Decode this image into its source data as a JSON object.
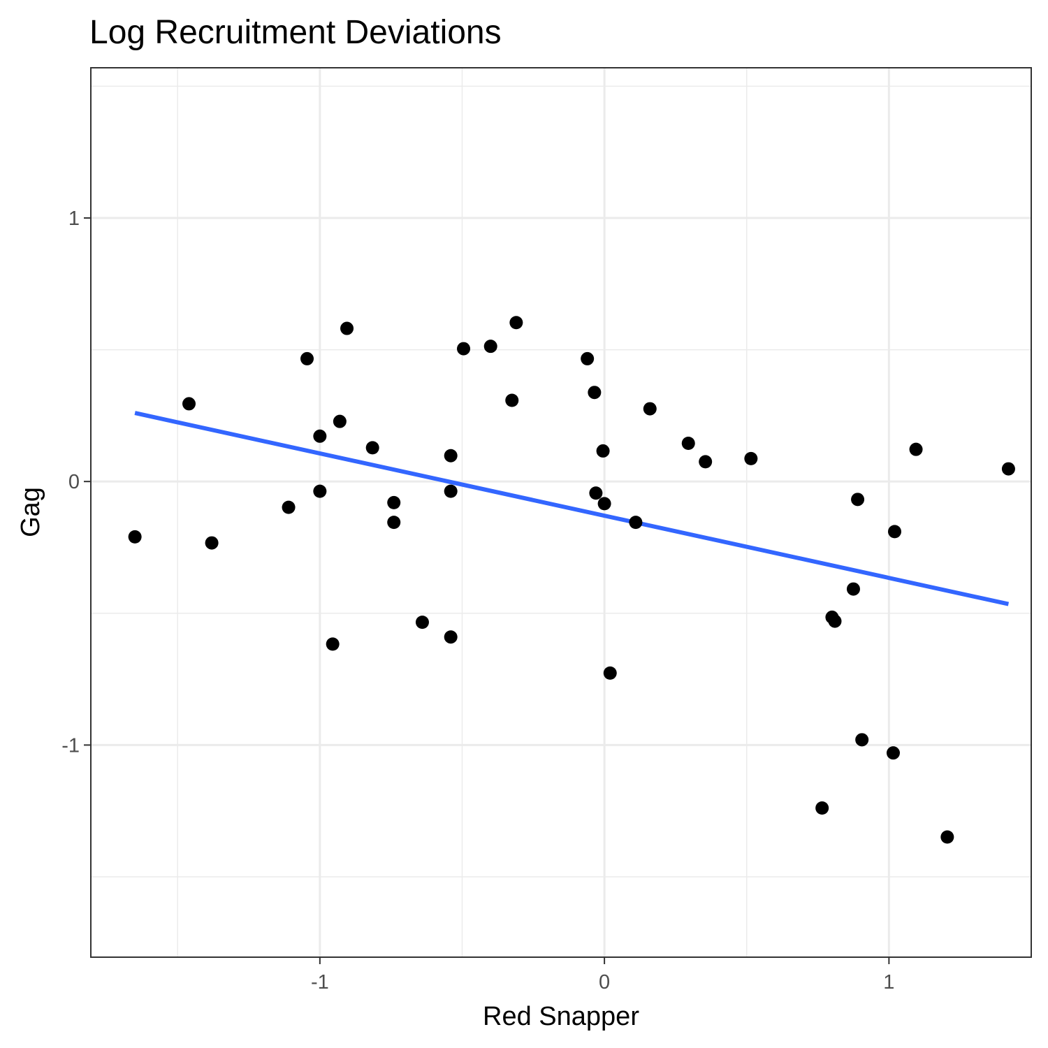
{
  "chart_data": {
    "type": "scatter",
    "title": "Log Recruitment Deviations",
    "xlabel": "Red Snapper",
    "ylabel": "Gag",
    "xlim": [
      -1.805,
      1.5
    ],
    "ylim": [
      -1.805,
      1.57
    ],
    "x_ticks": [
      -1,
      0,
      1
    ],
    "x_tick_labels": [
      "-1",
      "0",
      "1"
    ],
    "y_ticks": [
      -1,
      0,
      1
    ],
    "y_tick_labels": [
      "-1",
      "0",
      "1"
    ],
    "x_minor_ticks": [
      -1.5,
      -0.5,
      0.5,
      1.5
    ],
    "y_minor_ticks": [
      -1.5,
      -0.5,
      0.5,
      1.5
    ],
    "grid": true,
    "points": [
      {
        "x": -1.65,
        "y": -0.21
      },
      {
        "x": -1.46,
        "y": 0.295
      },
      {
        "x": -1.38,
        "y": -0.233
      },
      {
        "x": -1.11,
        "y": -0.098
      },
      {
        "x": -1.045,
        "y": 0.466
      },
      {
        "x": -1.0,
        "y": 0.172
      },
      {
        "x": -1.0,
        "y": -0.037
      },
      {
        "x": -0.955,
        "y": -0.617
      },
      {
        "x": -0.93,
        "y": 0.228
      },
      {
        "x": -0.905,
        "y": 0.581
      },
      {
        "x": -0.815,
        "y": 0.128
      },
      {
        "x": -0.74,
        "y": -0.08
      },
      {
        "x": -0.74,
        "y": -0.155
      },
      {
        "x": -0.64,
        "y": -0.534
      },
      {
        "x": -0.54,
        "y": 0.098
      },
      {
        "x": -0.54,
        "y": -0.037
      },
      {
        "x": -0.54,
        "y": -0.59
      },
      {
        "x": -0.495,
        "y": 0.504
      },
      {
        "x": -0.4,
        "y": 0.513
      },
      {
        "x": -0.325,
        "y": 0.308
      },
      {
        "x": -0.31,
        "y": 0.603
      },
      {
        "x": -0.06,
        "y": 0.466
      },
      {
        "x": -0.035,
        "y": 0.338
      },
      {
        "x": -0.03,
        "y": -0.044
      },
      {
        "x": -0.005,
        "y": 0.116
      },
      {
        "x": 0.0,
        "y": -0.084
      },
      {
        "x": 0.02,
        "y": -0.727
      },
      {
        "x": 0.11,
        "y": -0.155
      },
      {
        "x": 0.16,
        "y": 0.276
      },
      {
        "x": 0.295,
        "y": 0.145
      },
      {
        "x": 0.355,
        "y": 0.075
      },
      {
        "x": 0.515,
        "y": 0.087
      },
      {
        "x": 0.765,
        "y": -1.239
      },
      {
        "x": 0.8,
        "y": -0.515
      },
      {
        "x": 0.81,
        "y": -0.53
      },
      {
        "x": 0.875,
        "y": -0.408
      },
      {
        "x": 0.89,
        "y": -0.068
      },
      {
        "x": 0.905,
        "y": -0.98
      },
      {
        "x": 1.015,
        "y": -1.03
      },
      {
        "x": 1.02,
        "y": -0.19
      },
      {
        "x": 1.095,
        "y": 0.122
      },
      {
        "x": 1.205,
        "y": -1.349
      },
      {
        "x": 1.42,
        "y": 0.048
      }
    ],
    "trend_line": {
      "x": [
        -1.65,
        1.42
      ],
      "y": [
        0.26,
        -0.465
      ],
      "color": "#3366ff"
    },
    "point_color": "#000000"
  }
}
